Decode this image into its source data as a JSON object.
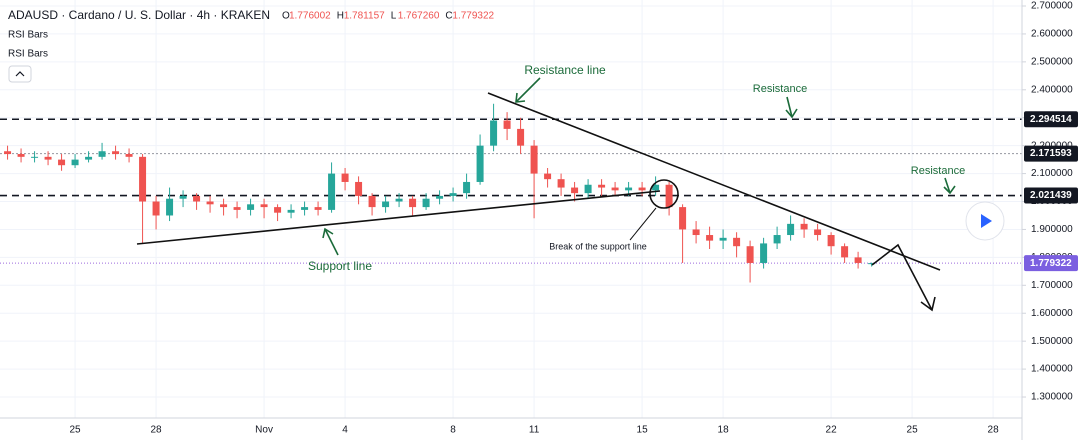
{
  "header": {
    "symbol": "ADAUSD · Cardano / U. S. Dollar · 4h · KRAKEN",
    "ohlc": [
      {
        "label": "O",
        "value": "1.776002"
      },
      {
        "label": "H",
        "value": "1.781157"
      },
      {
        "label": "L",
        "value": "1.767260"
      },
      {
        "label": "C",
        "value": "1.779322"
      }
    ],
    "indicators": [
      "RSI Bars",
      "RSI Bars"
    ]
  },
  "chart_data": {
    "type": "candlestick",
    "x": [
      -2.5,
      -2,
      -1.5,
      -1,
      -0.5,
      0,
      0.5,
      1,
      1.5,
      2,
      2.5,
      3,
      3.5,
      4,
      4.5,
      5,
      5.5,
      6,
      6.5,
      7,
      7.5,
      8,
      8.5,
      9,
      9.5,
      10,
      10.5,
      11,
      11.5,
      12,
      12.5,
      13,
      13.5,
      14,
      14.5,
      15,
      15.5,
      16,
      16.5,
      17,
      17.5,
      18,
      18.5,
      19,
      19.5,
      20,
      20.5,
      21,
      21.5,
      22,
      22.5,
      23,
      23.5,
      24,
      24.5,
      25,
      25.5,
      26,
      26.5,
      27,
      27.5,
      28,
      28.5,
      29,
      29.5
    ],
    "open": [
      2.18,
      2.17,
      2.16,
      2.16,
      2.15,
      2.13,
      2.15,
      2.16,
      2.18,
      2.17,
      2.16,
      2.0,
      1.95,
      2.01,
      2.02,
      2.0,
      1.99,
      1.98,
      1.97,
      1.99,
      1.98,
      1.96,
      1.97,
      1.98,
      1.97,
      2.1,
      2.07,
      2.02,
      1.98,
      2.0,
      2.01,
      1.98,
      2.01,
      2.02,
      2.03,
      2.07,
      2.2,
      2.29,
      2.26,
      2.2,
      2.1,
      2.08,
      2.05,
      2.03,
      2.06,
      2.05,
      2.04,
      2.05,
      2.04,
      2.06,
      1.98,
      1.9,
      1.88,
      1.86,
      1.87,
      1.84,
      1.78,
      1.85,
      1.88,
      1.92,
      1.9,
      1.88,
      1.84,
      1.8,
      1.776002
    ],
    "high": [
      2.2,
      2.19,
      2.18,
      2.18,
      2.17,
      2.17,
      2.18,
      2.21,
      2.2,
      2.19,
      2.17,
      2.02,
      2.05,
      2.04,
      2.03,
      2.02,
      2.01,
      2.0,
      2.01,
      2.01,
      1.99,
      1.99,
      2.0,
      2.0,
      2.14,
      2.12,
      2.09,
      2.03,
      2.02,
      2.03,
      2.02,
      2.03,
      2.04,
      2.05,
      2.1,
      2.24,
      2.35,
      2.32,
      2.3,
      2.22,
      2.12,
      2.1,
      2.07,
      2.08,
      2.08,
      2.07,
      2.07,
      2.07,
      2.09,
      2.07,
      1.99,
      1.93,
      1.91,
      1.9,
      1.89,
      1.86,
      1.87,
      1.91,
      1.95,
      1.94,
      1.92,
      1.89,
      1.85,
      1.82,
      1.781157
    ],
    "low": [
      2.15,
      2.14,
      2.14,
      2.13,
      2.11,
      2.12,
      2.14,
      2.15,
      2.15,
      2.14,
      1.85,
      1.9,
      1.93,
      1.98,
      1.97,
      1.96,
      1.95,
      1.94,
      1.95,
      1.94,
      1.93,
      1.94,
      1.95,
      1.95,
      1.96,
      2.04,
      1.99,
      1.95,
      1.96,
      1.98,
      1.95,
      1.97,
      1.99,
      2.0,
      2.01,
      2.06,
      2.18,
      2.22,
      2.17,
      1.94,
      2.05,
      2.02,
      2.0,
      2.01,
      2.02,
      2.02,
      2.02,
      2.02,
      2.02,
      1.95,
      1.78,
      1.85,
      1.83,
      1.83,
      1.8,
      1.71,
      1.76,
      1.83,
      1.86,
      1.87,
      1.86,
      1.81,
      1.78,
      1.76,
      1.76726
    ],
    "close": [
      2.17,
      2.16,
      2.16,
      2.15,
      2.13,
      2.15,
      2.16,
      2.18,
      2.17,
      2.16,
      2.0,
      1.95,
      2.01,
      2.02,
      2.0,
      1.99,
      1.98,
      1.97,
      1.99,
      1.98,
      1.96,
      1.97,
      1.98,
      1.97,
      2.1,
      2.07,
      2.02,
      1.98,
      2.0,
      2.01,
      1.98,
      2.01,
      2.02,
      2.03,
      2.07,
      2.2,
      2.29,
      2.26,
      2.2,
      2.1,
      2.08,
      2.05,
      2.03,
      2.06,
      2.05,
      2.04,
      2.05,
      2.04,
      2.06,
      1.98,
      1.9,
      1.88,
      1.86,
      1.87,
      1.84,
      1.78,
      1.85,
      1.88,
      1.92,
      1.9,
      1.88,
      1.84,
      1.8,
      1.78,
      1.779322
    ],
    "up_color": "#26a69a",
    "down_color": "#ef5350",
    "xlim": [
      -2.78,
      35.07
    ],
    "xticks": [
      {
        "value": 0,
        "label": "25"
      },
      {
        "value": 3,
        "label": "28"
      },
      {
        "value": 7,
        "label": "Nov"
      },
      {
        "value": 10,
        "label": "4"
      },
      {
        "value": 14,
        "label": "8"
      },
      {
        "value": 17,
        "label": "11"
      },
      {
        "value": 21,
        "label": "15"
      },
      {
        "value": 24,
        "label": "18"
      },
      {
        "value": 28,
        "label": "22"
      },
      {
        "value": 31,
        "label": "25"
      },
      {
        "value": 34,
        "label": "28"
      }
    ],
    "ylim": [
      1.2249,
      2.7215
    ],
    "yticks": [
      {
        "value": 2.7,
        "label": "2.700000"
      },
      {
        "value": 2.6,
        "label": "2.600000"
      },
      {
        "value": 2.5,
        "label": "2.500000"
      },
      {
        "value": 2.4,
        "label": "2.400000"
      },
      {
        "value": 2.3,
        "label": "2.300000"
      },
      {
        "value": 2.2,
        "label": "2.200000"
      },
      {
        "value": 2.1,
        "label": "2.100000"
      },
      {
        "value": 2.0,
        "label": "2.000000"
      },
      {
        "value": 1.9,
        "label": "1.900000"
      },
      {
        "value": 1.8,
        "label": "1.800000"
      },
      {
        "value": 1.7,
        "label": "1.700000"
      },
      {
        "value": 1.6,
        "label": "1.600000"
      },
      {
        "value": 1.5,
        "label": "1.500000"
      },
      {
        "value": 1.4,
        "label": "1.400000"
      },
      {
        "value": 1.3,
        "label": "1.300000"
      }
    ],
    "grid": true,
    "levels": [
      2.294514,
      2.171593,
      2.021439
    ],
    "last_price": 1.779322,
    "annotations": [
      "Resistance line",
      "Resistance",
      "Resistance",
      "Support line",
      "Break of the support line"
    ]
  }
}
